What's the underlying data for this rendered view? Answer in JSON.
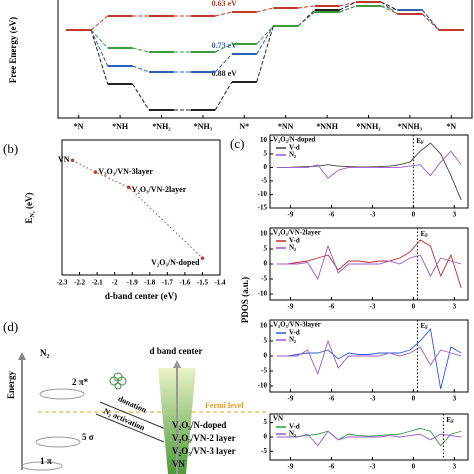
{
  "chart_data": [
    {
      "type": "line",
      "step": true,
      "ylabel": "Free Energy (eV)",
      "categories": [
        "*N",
        "*NH",
        "*NH₂",
        "*NH₃",
        "N*",
        "*NN",
        "*NNH",
        "*NNH₂",
        "*NNH₃",
        "*N"
      ],
      "ylim": [
        -2.2,
        0.8
      ],
      "series": [
        {
          "color": "#222222",
          "annotation": "0.88 eV",
          "values": [
            0,
            -1.35,
            -2.0,
            -2.0,
            -1.3,
            0.1,
            0.5,
            0.7,
            0.5,
            0
          ]
        },
        {
          "color": "#2f5fb3",
          "annotation": "0.73 eV",
          "values": [
            0,
            -0.9,
            -1.05,
            -1.05,
            -0.6,
            0.1,
            0.45,
            0.6,
            0.5,
            0
          ]
        },
        {
          "color": "#3d9a3d",
          "values": [
            0,
            -0.45,
            -0.55,
            -0.55,
            -0.35,
            0.1,
            0.45,
            0.6,
            0.4,
            0
          ]
        },
        {
          "color": "#c0392b",
          "annotation": "0.63 eV",
          "values": [
            0,
            0.35,
            0.35,
            0.35,
            0.45,
            0.55,
            0.6,
            0.7,
            0.4,
            0
          ]
        }
      ]
    },
    {
      "type": "scatter",
      "label": "(b)",
      "xlabel": "d-band center (eV)",
      "ylabel": {
        "main": "E",
        "sub": "N₂",
        "unit": " (eV)"
      },
      "x": [
        -2.24,
        -2.11,
        -1.92,
        -1.5
      ],
      "values": [
        0.68,
        0.61,
        0.52,
        0.1
      ],
      "labels": [
        "VN",
        "V₂O₃/VN-3layer",
        "V₂O₃/VN-2layer",
        "V₂O₃/N-doped"
      ],
      "color": "#c0392b",
      "xlim": [
        -2.3,
        -1.4
      ],
      "xticks": [
        -2.3,
        -2.2,
        -2.1,
        -2.0,
        -1.9,
        -1.8,
        -1.7,
        -1.6,
        -1.5,
        -1.4
      ],
      "ylim": [
        0,
        0.8
      ]
    },
    {
      "type": "line",
      "label": "(c)",
      "title": "V₂O₃/N-doped",
      "ef": 0,
      "x": [
        -10,
        -9.25,
        -8.5,
        -7.75,
        -7,
        -6.25,
        -5.5,
        -4.75,
        -4,
        -3.25,
        -2.5,
        -1.75,
        -1,
        -0.25,
        0.5,
        1.25,
        2,
        2.75,
        3.5
      ],
      "xlim": [
        -10.5,
        4
      ],
      "xticks": [
        -9,
        -6,
        -3,
        0,
        3
      ],
      "ylim": [
        -15,
        12
      ],
      "yticks": [
        10,
        5,
        0,
        -5,
        -10,
        -15
      ],
      "series": [
        {
          "name": "V-d",
          "color": "#444444",
          "values": [
            0,
            0,
            0.2,
            0.3,
            0.5,
            1,
            0.5,
            0.3,
            0.2,
            0.2,
            0.3,
            0.5,
            1,
            2,
            6,
            9,
            5,
            -3,
            -12
          ]
        },
        {
          "name": "N₂",
          "color": "#9b59d0",
          "values": [
            0,
            0,
            0,
            0,
            1,
            -4,
            -1,
            0,
            0,
            0,
            0,
            0,
            0,
            0.5,
            1,
            -3,
            2,
            6,
            1
          ]
        }
      ]
    },
    {
      "type": "line",
      "title": "V₂O₃/VN-2layer",
      "ef": 0.3,
      "x": [
        -10,
        -9.25,
        -8.5,
        -7.75,
        -7,
        -6.25,
        -5.5,
        -4.75,
        -4,
        -3.25,
        -2.5,
        -1.75,
        -1,
        -0.25,
        0.5,
        1.25,
        2,
        2.75,
        3.5
      ],
      "xlim": [
        -10.5,
        4
      ],
      "xticks": [
        -9,
        -6,
        -3,
        0,
        3
      ],
      "ylim": [
        -12,
        12
      ],
      "yticks": [
        10,
        5,
        0,
        -5,
        -10
      ],
      "series": [
        {
          "name": "V-d",
          "color": "#c62828",
          "values": [
            0,
            0,
            0.5,
            1,
            2,
            3,
            -2,
            1,
            1,
            0.5,
            1,
            1,
            2,
            4,
            8,
            6,
            -4,
            3,
            -8
          ]
        },
        {
          "name": "N₂",
          "color": "#9b59d0",
          "values": [
            0,
            0,
            0,
            0.5,
            -5,
            6,
            -3,
            0,
            0,
            0,
            0,
            1,
            0,
            2,
            3,
            -4,
            2,
            1,
            0
          ]
        }
      ]
    },
    {
      "type": "line",
      "title": "V₂O₃/VN-3layer",
      "ef": 0.3,
      "x": [
        -10,
        -9.25,
        -8.5,
        -7.75,
        -7,
        -6.25,
        -5.5,
        -4.75,
        -4,
        -3.25,
        -2.5,
        -1.75,
        -1,
        -0.25,
        0.5,
        1.25,
        2,
        2.75,
        3.5
      ],
      "xlim": [
        -10.5,
        4
      ],
      "xticks": [
        -9,
        -6,
        -3,
        0,
        3
      ],
      "ylim": [
        -12,
        12
      ],
      "yticks": [
        10,
        5,
        0,
        -5,
        -10
      ],
      "series": [
        {
          "name": "V-d",
          "color": "#2a5bd7",
          "values": [
            0,
            0,
            0.5,
            1,
            1,
            2,
            -1,
            1,
            0.5,
            0.5,
            1,
            1,
            1,
            2,
            5,
            9,
            -11,
            3,
            1
          ]
        },
        {
          "name": "N₂",
          "color": "#9b59d0",
          "values": [
            0,
            0,
            0,
            2,
            -6,
            5,
            -4,
            0,
            0,
            0,
            0,
            1,
            0,
            1,
            3,
            -3,
            2,
            1,
            0
          ]
        }
      ]
    },
    {
      "type": "line",
      "title": "VN",
      "ef": 2.2,
      "x": [
        -10,
        -9.25,
        -8.5,
        -7.75,
        -7,
        -6.25,
        -5.5,
        -4.75,
        -4,
        -3.25,
        -2.5,
        -1.75,
        -1,
        -0.25,
        0.5,
        1.25,
        2,
        2.75,
        3.5
      ],
      "xlim": [
        -10.5,
        4
      ],
      "xticks": [
        -9,
        -6,
        -3,
        0,
        3
      ],
      "ylim": [
        -8,
        8
      ],
      "yticks": [
        5,
        0,
        -5
      ],
      "series": [
        {
          "name": "V-d",
          "color": "#2e9e3e",
          "values": [
            0,
            0,
            0.2,
            0.5,
            1,
            2,
            -1,
            1,
            0.5,
            0.3,
            0.5,
            0.8,
            1,
            2,
            3,
            2,
            -3,
            1,
            2
          ]
        },
        {
          "name": "N₂",
          "color": "#9b59d0",
          "values": [
            0,
            0,
            0,
            1,
            -3,
            2,
            -1,
            0,
            0,
            0,
            0,
            0.5,
            0,
            0.5,
            1,
            -1,
            1,
            0.5,
            0
          ]
        }
      ]
    }
  ],
  "pdos_ylabel": "PDOS (a.u.)",
  "ef_label": {
    "main": "E",
    "sub": "F"
  },
  "diagram": {
    "label": "(d)",
    "energy": "Energy",
    "molecule": "N₂",
    "orbitals": [
      "2 π*",
      "5 σ",
      "1 π"
    ],
    "donation": "donation",
    "activation": "N₂ activation",
    "d_band": "d band center",
    "fermi": "Fermi level",
    "materials": [
      "V₂O₃/N-doped",
      "V₂O₃/VN-2 layer",
      "V₂O₃/VN-3 layer",
      "VN"
    ]
  }
}
